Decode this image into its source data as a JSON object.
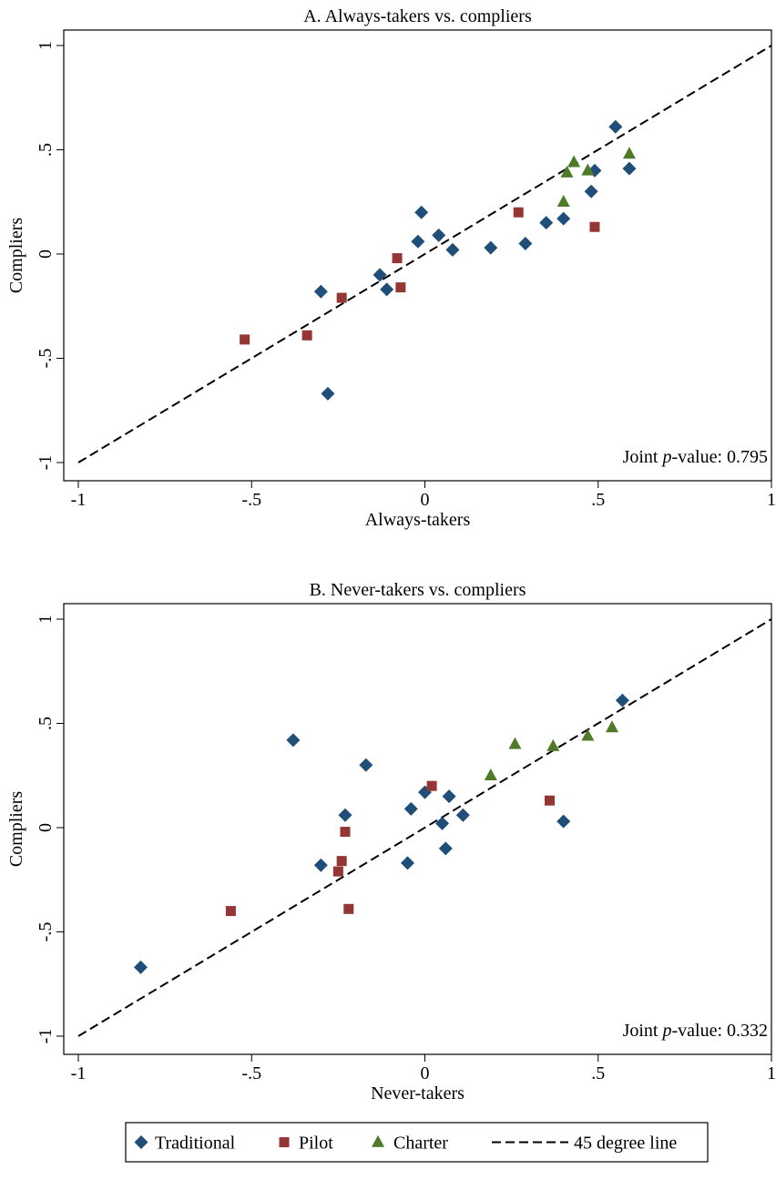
{
  "colors": {
    "traditional": "#1f4e79",
    "pilot": "#943634",
    "charter": "#4f7a28",
    "line": "#000000"
  },
  "legend": {
    "items": [
      {
        "key": "traditional",
        "label": "Traditional",
        "marker": "diamond"
      },
      {
        "key": "pilot",
        "label": "Pilot",
        "marker": "square"
      },
      {
        "key": "charter",
        "label": "Charter",
        "marker": "triangle"
      },
      {
        "key": "line",
        "label": "45 degree line",
        "marker": "dash"
      }
    ]
  },
  "chart_data": [
    {
      "type": "scatter",
      "title": "A. Always-takers vs. compliers",
      "xlabel": "Always-takers",
      "ylabel": "Compliers",
      "xlim": [
        -1,
        1
      ],
      "ylim": [
        -1,
        1
      ],
      "xticks": [
        "-1",
        "-.5",
        "0",
        ".5",
        "1"
      ],
      "yticks": [
        "-1",
        "-.5",
        "0",
        ".5",
        "1"
      ],
      "annotation": {
        "prefix": "Joint ",
        "italic": "p",
        "suffix": "-value: 0.795"
      },
      "reference_line": "45 degree line",
      "series": [
        {
          "name": "Traditional",
          "key": "traditional",
          "x": [
            0.55,
            0.59,
            0.49,
            0.48,
            0.4,
            0.35,
            0.29,
            0.19,
            0.08,
            0.04,
            -0.02,
            -0.01,
            -0.13,
            -0.11,
            -0.3,
            -0.28
          ],
          "y": [
            0.61,
            0.41,
            0.4,
            0.3,
            0.17,
            0.15,
            0.05,
            0.03,
            0.02,
            0.09,
            0.06,
            0.2,
            -0.1,
            -0.17,
            -0.18,
            -0.67
          ]
        },
        {
          "name": "Pilot",
          "key": "pilot",
          "x": [
            0.27,
            0.49,
            -0.08,
            -0.07,
            -0.24,
            -0.34,
            -0.52
          ],
          "y": [
            0.2,
            0.13,
            -0.02,
            -0.16,
            -0.21,
            -0.39,
            -0.41
          ]
        },
        {
          "name": "Charter",
          "key": "charter",
          "x": [
            0.43,
            0.47,
            0.41,
            0.59,
            0.4
          ],
          "y": [
            0.44,
            0.4,
            0.39,
            0.48,
            0.25
          ]
        }
      ]
    },
    {
      "type": "scatter",
      "title": "B. Never-takers vs. compliers",
      "xlabel": "Never-takers",
      "ylabel": "Compliers",
      "xlim": [
        -1,
        1
      ],
      "ylim": [
        -1,
        1
      ],
      "xticks": [
        "-1",
        "-.5",
        "0",
        ".5",
        "1"
      ],
      "yticks": [
        "-1",
        "-.5",
        "0",
        ".5",
        "1"
      ],
      "annotation": {
        "prefix": "Joint ",
        "italic": "p",
        "suffix": "-value: 0.332"
      },
      "reference_line": "45 degree line",
      "series": [
        {
          "name": "Traditional",
          "key": "traditional",
          "x": [
            0.57,
            0.4,
            -0.38,
            -0.17,
            -0.23,
            -0.04,
            0.0,
            0.07,
            0.05,
            0.11,
            -0.05,
            0.06,
            -0.3,
            -0.82
          ],
          "y": [
            0.61,
            0.03,
            0.42,
            0.3,
            0.06,
            0.09,
            0.17,
            0.15,
            0.02,
            0.06,
            -0.17,
            -0.1,
            -0.18,
            -0.67
          ]
        },
        {
          "name": "Pilot",
          "key": "pilot",
          "x": [
            0.02,
            0.36,
            -0.23,
            -0.24,
            -0.25,
            -0.22,
            -0.56
          ],
          "y": [
            0.2,
            0.13,
            -0.02,
            -0.16,
            -0.21,
            -0.39,
            -0.4
          ]
        },
        {
          "name": "Charter",
          "key": "charter",
          "x": [
            0.26,
            0.37,
            0.47,
            0.54,
            0.19
          ],
          "y": [
            0.4,
            0.39,
            0.44,
            0.48,
            0.25
          ]
        }
      ]
    }
  ]
}
